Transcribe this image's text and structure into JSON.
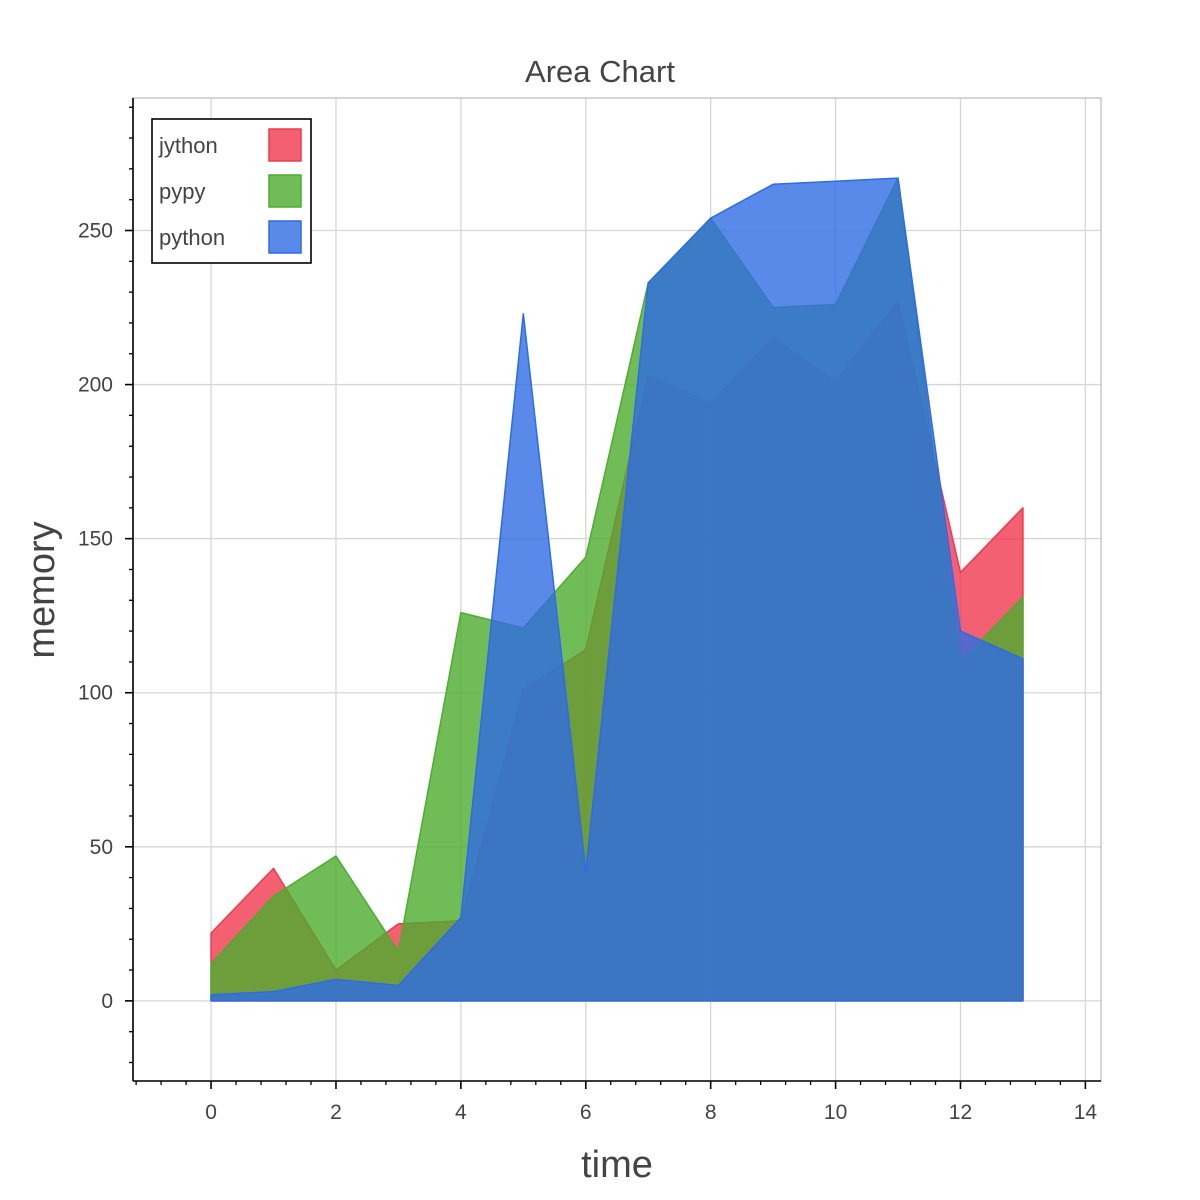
{
  "chart_data": {
    "type": "area",
    "title": "Area Chart",
    "xlabel": "time",
    "ylabel": "memory",
    "x": [
      0,
      1,
      2,
      3,
      4,
      5,
      6,
      7,
      8,
      9,
      10,
      11,
      12,
      13
    ],
    "xlim": [
      -1.25,
      14.25
    ],
    "ylim": [
      -26,
      293
    ],
    "xticks": [
      0,
      2,
      4,
      6,
      8,
      10,
      12,
      14
    ],
    "yticks": [
      0,
      50,
      100,
      150,
      200,
      250
    ],
    "xtick_labels": [
      "0",
      "2",
      "4",
      "6",
      "8",
      "10",
      "12",
      "14"
    ],
    "ytick_labels": [
      "0",
      "50",
      "100",
      "150",
      "200",
      "250"
    ],
    "grid": true,
    "legend_position": "top-left",
    "stacked": false,
    "series": [
      {
        "name": "jython",
        "color": "#f0384f",
        "values": [
          22,
          43,
          10,
          25,
          26,
          101,
          114,
          203,
          194,
          215,
          201,
          227,
          139,
          160
        ]
      },
      {
        "name": "pypy",
        "color": "#4cad2e",
        "values": [
          12,
          34,
          47,
          16,
          126,
          121,
          144,
          233,
          254,
          225,
          226,
          267,
          110,
          131
        ]
      },
      {
        "name": "python",
        "color": "#2f6be4",
        "values": [
          2,
          3,
          7,
          5,
          27,
          223,
          42,
          233,
          254,
          265,
          266,
          267,
          120,
          111
        ]
      }
    ]
  }
}
